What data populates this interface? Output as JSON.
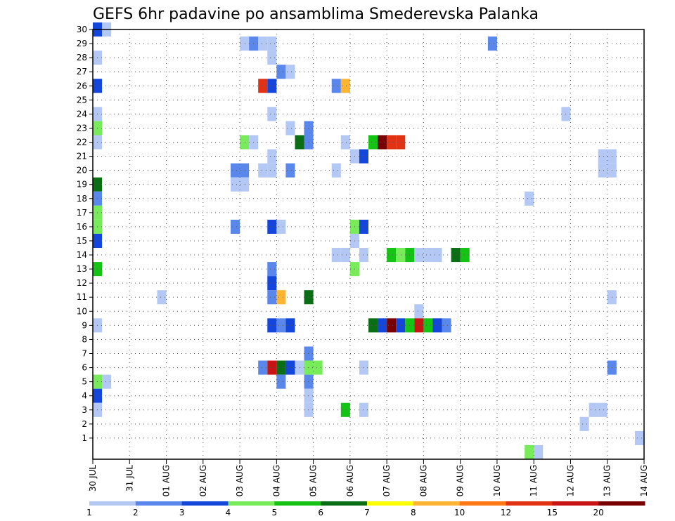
{
  "chart_data": {
    "type": "heatmap",
    "title": "GEFS 6hr padavine po ansamblima Smederevska Palanka",
    "xlabel": "",
    "ylabel": "",
    "x_ticks": [
      "30 JUL",
      "31 JUL",
      "01 AUG",
      "02 AUG",
      "03 AUG",
      "04 AUG",
      "05 AUG",
      "06 AUG",
      "07 AUG",
      "08 AUG",
      "09 AUG",
      "10 AUG",
      "11 AUG",
      "12 AUG",
      "13 AUG",
      "14 AUG"
    ],
    "y_ticks": [
      "1",
      "2",
      "3",
      "4",
      "5",
      "6",
      "7",
      "8",
      "9",
      "10",
      "11",
      "12",
      "13",
      "14",
      "15",
      "16",
      "17",
      "18",
      "19",
      "20",
      "21",
      "22",
      "23",
      "24",
      "25",
      "26",
      "27",
      "28",
      "29",
      "30"
    ],
    "time_step_hours": 6,
    "grid": true,
    "colorbar": {
      "labels": [
        "1",
        "2",
        "3",
        "4",
        "5",
        "6",
        "7",
        "8",
        "10",
        "12",
        "15",
        "20"
      ],
      "colors": [
        "#b4c8f5",
        "#5a87eb",
        "#1446dc",
        "#78eb5a",
        "#14c314",
        "#0a6e14",
        "#ffff00",
        "#ffb432",
        "#ff7814",
        "#e13214",
        "#c81414",
        "#780000"
      ]
    },
    "cells": [
      {
        "member": 30,
        "day": "30 JUL",
        "step": 0,
        "bin": 2
      },
      {
        "member": 30,
        "day": "30 JUL",
        "step": 1,
        "bin": 0
      },
      {
        "member": 29,
        "day": "03 AUG",
        "step": 0,
        "bin": 0
      },
      {
        "member": 29,
        "day": "03 AUG",
        "step": 1,
        "bin": 1
      },
      {
        "member": 29,
        "day": "03 AUG",
        "step": 2,
        "bin": 0
      },
      {
        "member": 29,
        "day": "03 AUG",
        "step": 3,
        "bin": 0
      },
      {
        "member": 29,
        "day": "09 AUG",
        "step": 3,
        "bin": 1
      },
      {
        "member": 28,
        "day": "30 JUL",
        "step": 0,
        "bin": 0
      },
      {
        "member": 28,
        "day": "03 AUG",
        "step": 3,
        "bin": 0
      },
      {
        "member": 27,
        "day": "04 AUG",
        "step": 0,
        "bin": 1
      },
      {
        "member": 27,
        "day": "04 AUG",
        "step": 1,
        "bin": 0
      },
      {
        "member": 26,
        "day": "30 JUL",
        "step": 0,
        "bin": 2
      },
      {
        "member": 26,
        "day": "03 AUG",
        "step": 2,
        "bin": 9
      },
      {
        "member": 26,
        "day": "03 AUG",
        "step": 3,
        "bin": 2
      },
      {
        "member": 26,
        "day": "05 AUG",
        "step": 2,
        "bin": 1
      },
      {
        "member": 26,
        "day": "05 AUG",
        "step": 3,
        "bin": 7
      },
      {
        "member": 24,
        "day": "30 JUL",
        "step": 0,
        "bin": 0
      },
      {
        "member": 24,
        "day": "03 AUG",
        "step": 3,
        "bin": 0
      },
      {
        "member": 24,
        "day": "11 AUG",
        "step": 3,
        "bin": 0
      },
      {
        "member": 23,
        "day": "30 JUL",
        "step": 0,
        "bin": 3
      },
      {
        "member": 23,
        "day": "04 AUG",
        "step": 1,
        "bin": 0
      },
      {
        "member": 23,
        "day": "04 AUG",
        "step": 3,
        "bin": 1
      },
      {
        "member": 22,
        "day": "30 JUL",
        "step": 0,
        "bin": 0
      },
      {
        "member": 22,
        "day": "03 AUG",
        "step": 0,
        "bin": 3
      },
      {
        "member": 22,
        "day": "03 AUG",
        "step": 1,
        "bin": 0
      },
      {
        "member": 22,
        "day": "04 AUG",
        "step": 2,
        "bin": 5
      },
      {
        "member": 22,
        "day": "04 AUG",
        "step": 3,
        "bin": 1
      },
      {
        "member": 22,
        "day": "05 AUG",
        "step": 3,
        "bin": 0
      },
      {
        "member": 22,
        "day": "06 AUG",
        "step": 2,
        "bin": 4
      },
      {
        "member": 22,
        "day": "06 AUG",
        "step": 3,
        "bin": 11
      },
      {
        "member": 22,
        "day": "07 AUG",
        "step": 0,
        "bin": 9
      },
      {
        "member": 22,
        "day": "07 AUG",
        "step": 1,
        "bin": 9
      },
      {
        "member": 21,
        "day": "03 AUG",
        "step": 3,
        "bin": 0
      },
      {
        "member": 21,
        "day": "06 AUG",
        "step": 0,
        "bin": 0
      },
      {
        "member": 21,
        "day": "06 AUG",
        "step": 1,
        "bin": 2
      },
      {
        "member": 21,
        "day": "12 AUG",
        "step": 3,
        "bin": 0
      },
      {
        "member": 21,
        "day": "13 AUG",
        "step": 0,
        "bin": 0
      },
      {
        "member": 20,
        "day": "02 AUG",
        "step": 3,
        "bin": 1
      },
      {
        "member": 20,
        "day": "03 AUG",
        "step": 0,
        "bin": 1
      },
      {
        "member": 20,
        "day": "03 AUG",
        "step": 2,
        "bin": 0
      },
      {
        "member": 20,
        "day": "03 AUG",
        "step": 3,
        "bin": 0
      },
      {
        "member": 20,
        "day": "04 AUG",
        "step": 1,
        "bin": 1
      },
      {
        "member": 20,
        "day": "05 AUG",
        "step": 2,
        "bin": 0
      },
      {
        "member": 20,
        "day": "12 AUG",
        "step": 3,
        "bin": 0
      },
      {
        "member": 20,
        "day": "13 AUG",
        "step": 0,
        "bin": 0
      },
      {
        "member": 19,
        "day": "30 JUL",
        "step": 0,
        "bin": 5
      },
      {
        "member": 19,
        "day": "02 AUG",
        "step": 3,
        "bin": 0
      },
      {
        "member": 19,
        "day": "03 AUG",
        "step": 0,
        "bin": 0
      },
      {
        "member": 18,
        "day": "30 JUL",
        "step": 0,
        "bin": 1
      },
      {
        "member": 18,
        "day": "10 AUG",
        "step": 3,
        "bin": 0
      },
      {
        "member": 17,
        "day": "30 JUL",
        "step": 0,
        "bin": 3
      },
      {
        "member": 16,
        "day": "30 JUL",
        "step": 0,
        "bin": 3
      },
      {
        "member": 16,
        "day": "02 AUG",
        "step": 3,
        "bin": 1
      },
      {
        "member": 16,
        "day": "03 AUG",
        "step": 3,
        "bin": 2
      },
      {
        "member": 16,
        "day": "04 AUG",
        "step": 0,
        "bin": 0
      },
      {
        "member": 16,
        "day": "06 AUG",
        "step": 0,
        "bin": 3
      },
      {
        "member": 16,
        "day": "06 AUG",
        "step": 1,
        "bin": 2
      },
      {
        "member": 15,
        "day": "30 JUL",
        "step": 0,
        "bin": 2
      },
      {
        "member": 15,
        "day": "06 AUG",
        "step": 0,
        "bin": 0
      },
      {
        "member": 14,
        "day": "05 AUG",
        "step": 2,
        "bin": 0
      },
      {
        "member": 14,
        "day": "05 AUG",
        "step": 3,
        "bin": 0
      },
      {
        "member": 14,
        "day": "06 AUG",
        "step": 1,
        "bin": 0
      },
      {
        "member": 14,
        "day": "07 AUG",
        "step": 0,
        "bin": 4
      },
      {
        "member": 14,
        "day": "07 AUG",
        "step": 1,
        "bin": 3
      },
      {
        "member": 14,
        "day": "07 AUG",
        "step": 2,
        "bin": 4
      },
      {
        "member": 14,
        "day": "07 AUG",
        "step": 3,
        "bin": 0
      },
      {
        "member": 14,
        "day": "08 AUG",
        "step": 0,
        "bin": 0
      },
      {
        "member": 14,
        "day": "08 AUG",
        "step": 1,
        "bin": 0
      },
      {
        "member": 14,
        "day": "08 AUG",
        "step": 3,
        "bin": 5
      },
      {
        "member": 14,
        "day": "09 AUG",
        "step": 0,
        "bin": 4
      },
      {
        "member": 13,
        "day": "30 JUL",
        "step": 0,
        "bin": 4
      },
      {
        "member": 13,
        "day": "03 AUG",
        "step": 3,
        "bin": 1
      },
      {
        "member": 13,
        "day": "06 AUG",
        "step": 0,
        "bin": 3
      },
      {
        "member": 12,
        "day": "03 AUG",
        "step": 3,
        "bin": 2
      },
      {
        "member": 11,
        "day": "31 JUL",
        "step": 3,
        "bin": 0
      },
      {
        "member": 11,
        "day": "03 AUG",
        "step": 3,
        "bin": 1
      },
      {
        "member": 11,
        "day": "04 AUG",
        "step": 0,
        "bin": 7
      },
      {
        "member": 11,
        "day": "04 AUG",
        "step": 3,
        "bin": 5
      },
      {
        "member": 11,
        "day": "13 AUG",
        "step": 0,
        "bin": 0
      },
      {
        "member": 10,
        "day": "07 AUG",
        "step": 3,
        "bin": 0
      },
      {
        "member": 9,
        "day": "30 JUL",
        "step": 0,
        "bin": 0
      },
      {
        "member": 9,
        "day": "03 AUG",
        "step": 3,
        "bin": 2
      },
      {
        "member": 9,
        "day": "04 AUG",
        "step": 0,
        "bin": 1
      },
      {
        "member": 9,
        "day": "04 AUG",
        "step": 1,
        "bin": 2
      },
      {
        "member": 9,
        "day": "06 AUG",
        "step": 2,
        "bin": 5
      },
      {
        "member": 9,
        "day": "06 AUG",
        "step": 3,
        "bin": 2
      },
      {
        "member": 9,
        "day": "07 AUG",
        "step": 0,
        "bin": 11
      },
      {
        "member": 9,
        "day": "07 AUG",
        "step": 1,
        "bin": 2
      },
      {
        "member": 9,
        "day": "07 AUG",
        "step": 2,
        "bin": 4
      },
      {
        "member": 9,
        "day": "07 AUG",
        "step": 3,
        "bin": 10
      },
      {
        "member": 9,
        "day": "08 AUG",
        "step": 0,
        "bin": 4
      },
      {
        "member": 9,
        "day": "08 AUG",
        "step": 1,
        "bin": 2
      },
      {
        "member": 9,
        "day": "08 AUG",
        "step": 2,
        "bin": 1
      },
      {
        "member": 7,
        "day": "04 AUG",
        "step": 3,
        "bin": 1
      },
      {
        "member": 6,
        "day": "03 AUG",
        "step": 2,
        "bin": 1
      },
      {
        "member": 6,
        "day": "03 AUG",
        "step": 3,
        "bin": 10
      },
      {
        "member": 6,
        "day": "04 AUG",
        "step": 0,
        "bin": 5
      },
      {
        "member": 6,
        "day": "04 AUG",
        "step": 1,
        "bin": 2
      },
      {
        "member": 6,
        "day": "04 AUG",
        "step": 2,
        "bin": 0
      },
      {
        "member": 6,
        "day": "04 AUG",
        "step": 3,
        "bin": 3
      },
      {
        "member": 6,
        "day": "05 AUG",
        "step": 0,
        "bin": 3
      },
      {
        "member": 6,
        "day": "06 AUG",
        "step": 1,
        "bin": 0
      },
      {
        "member": 6,
        "day": "13 AUG",
        "step": 0,
        "bin": 1
      },
      {
        "member": 5,
        "day": "30 JUL",
        "step": 0,
        "bin": 3
      },
      {
        "member": 5,
        "day": "30 JUL",
        "step": 1,
        "bin": 0
      },
      {
        "member": 5,
        "day": "04 AUG",
        "step": 0,
        "bin": 1
      },
      {
        "member": 5,
        "day": "04 AUG",
        "step": 3,
        "bin": 1
      },
      {
        "member": 4,
        "day": "30 JUL",
        "step": 0,
        "bin": 2
      },
      {
        "member": 4,
        "day": "04 AUG",
        "step": 3,
        "bin": 0
      },
      {
        "member": 3,
        "day": "30 JUL",
        "step": 0,
        "bin": 0
      },
      {
        "member": 3,
        "day": "04 AUG",
        "step": 3,
        "bin": 0
      },
      {
        "member": 3,
        "day": "05 AUG",
        "step": 3,
        "bin": 4
      },
      {
        "member": 3,
        "day": "06 AUG",
        "step": 1,
        "bin": 0
      },
      {
        "member": 3,
        "day": "12 AUG",
        "step": 2,
        "bin": 0
      },
      {
        "member": 3,
        "day": "12 AUG",
        "step": 3,
        "bin": 0
      },
      {
        "member": 2,
        "day": "12 AUG",
        "step": 1,
        "bin": 0
      },
      {
        "member": 1,
        "day": "13 AUG",
        "step": 3,
        "bin": 0
      },
      {
        "member": 0,
        "day": "10 AUG",
        "step": 3,
        "bin": 3
      },
      {
        "member": 0,
        "day": "11 AUG",
        "step": 0,
        "bin": 0
      }
    ]
  }
}
